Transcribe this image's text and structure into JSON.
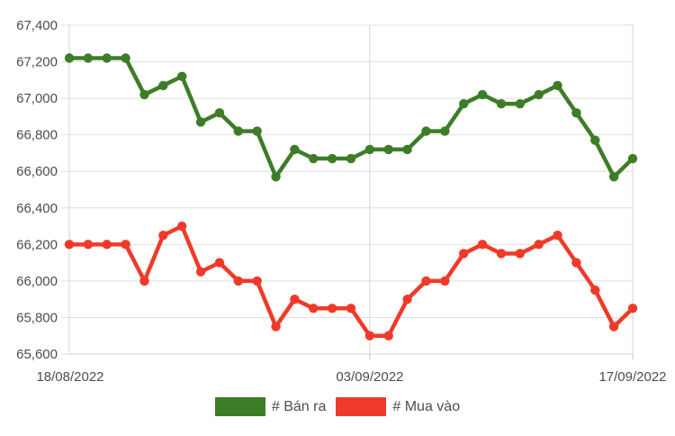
{
  "chart_data": {
    "type": "line",
    "title": "",
    "grid": true,
    "legend_position": "bottom",
    "ylim": [
      65600,
      67400
    ],
    "y_axis": {
      "ticks": [
        {
          "value": 67400,
          "label": "67,400"
        },
        {
          "value": 67200,
          "label": "67,200"
        },
        {
          "value": 67000,
          "label": "67,000"
        },
        {
          "value": 66800,
          "label": "66,800"
        },
        {
          "value": 66600,
          "label": "66,600"
        },
        {
          "value": 66400,
          "label": "66,400"
        },
        {
          "value": 66200,
          "label": "66,200"
        },
        {
          "value": 66000,
          "label": "66,000"
        },
        {
          "value": 65800,
          "label": "65,800"
        },
        {
          "value": 65600,
          "label": "65,600"
        }
      ]
    },
    "x_axis": {
      "visible_labels": [
        "18/08/2022",
        "03/09/2022",
        "17/09/2022"
      ],
      "visible_label_indices": [
        0,
        16,
        30
      ]
    },
    "x": [
      "18/08/2022",
      "19/08/2022",
      "20/08/2022",
      "21/08/2022",
      "22/08/2022",
      "23/08/2022",
      "24/08/2022",
      "25/08/2022",
      "26/08/2022",
      "27/08/2022",
      "28/08/2022",
      "29/08/2022",
      "30/08/2022",
      "31/08/2022",
      "01/09/2022",
      "02/09/2022",
      "03/09/2022",
      "04/09/2022",
      "05/09/2022",
      "06/09/2022",
      "07/09/2022",
      "08/09/2022",
      "09/09/2022",
      "10/09/2022",
      "11/09/2022",
      "12/09/2022",
      "13/09/2022",
      "14/09/2022",
      "15/09/2022",
      "16/09/2022",
      "17/09/2022"
    ],
    "series": [
      {
        "name": "# Bán ra",
        "color": "#3d7d27",
        "values": [
          67220,
          67220,
          67220,
          67220,
          67020,
          67070,
          67120,
          66870,
          66920,
          66820,
          66820,
          66570,
          66720,
          66670,
          66670,
          66670,
          66720,
          66720,
          66720,
          66820,
          66820,
          66970,
          67020,
          66970,
          66970,
          67020,
          67070,
          66920,
          66770,
          66570,
          66670
        ]
      },
      {
        "name": "# Mua vào",
        "color": "#ef3a2a",
        "values": [
          66200,
          66200,
          66200,
          66200,
          66000,
          66250,
          66300,
          66050,
          66100,
          66000,
          66000,
          65750,
          65900,
          65850,
          65850,
          65850,
          65700,
          65700,
          65900,
          66000,
          66000,
          66150,
          66200,
          66150,
          66150,
          66200,
          66250,
          66100,
          65950,
          65750,
          65850
        ]
      }
    ]
  },
  "colors": {
    "background": "#ffffff",
    "grid": "#dfdfdf",
    "axis_border": "#d4d4d4",
    "tick": "#c4c4c4",
    "text": "#4d4d4d"
  }
}
